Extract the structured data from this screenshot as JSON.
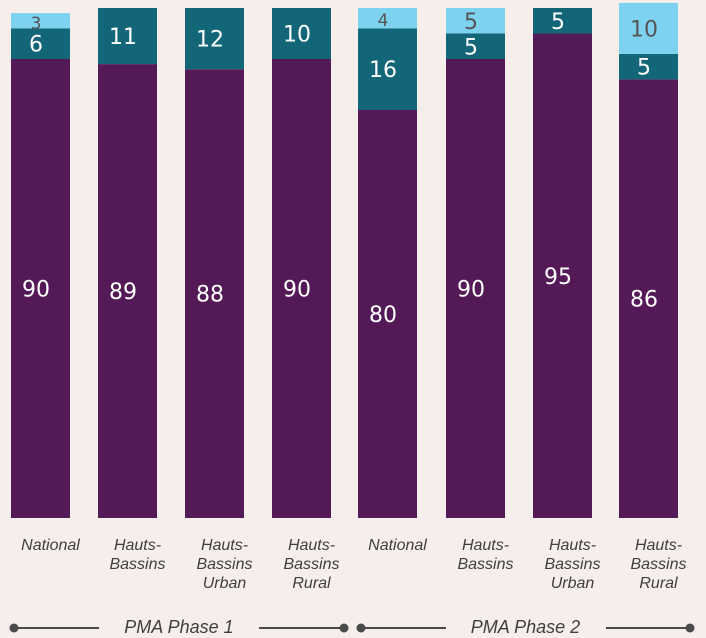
{
  "chart_data": {
    "type": "bar",
    "stacked": true,
    "orientation": "vertical",
    "groups": [
      {
        "label": "PMA Phase 1"
      },
      {
        "label": "PMA Phase 2"
      }
    ],
    "categories": [
      {
        "lines": [
          "National"
        ],
        "group": 0
      },
      {
        "lines": [
          "Hauts-",
          "Bassins"
        ],
        "group": 0
      },
      {
        "lines": [
          "Hauts-",
          "Bassins",
          "Urban"
        ],
        "group": 0
      },
      {
        "lines": [
          "Hauts-",
          "Bassins",
          "Rural"
        ],
        "group": 0
      },
      {
        "lines": [
          "National"
        ],
        "group": 1
      },
      {
        "lines": [
          "Hauts-",
          "Bassins"
        ],
        "group": 1
      },
      {
        "lines": [
          "Hauts-",
          "Bassins",
          "Urban"
        ],
        "group": 1
      },
      {
        "lines": [
          "Hauts-",
          "Bassins",
          "Rural"
        ],
        "group": 1
      }
    ],
    "series": [
      {
        "color": "#541a57",
        "label_color": "#ffffff",
        "values": [
          90,
          89,
          88,
          90,
          80,
          90,
          95,
          86
        ]
      },
      {
        "color": "#136678",
        "label_color": "#ffffff",
        "values": [
          6,
          11,
          12,
          10,
          16,
          5,
          5,
          5
        ]
      },
      {
        "color": "#7dd3ef",
        "label_color": "#555555",
        "values": [
          3,
          null,
          null,
          null,
          4,
          5,
          null,
          10
        ]
      }
    ],
    "data_labels": true,
    "legend": false,
    "grid": false,
    "ylim": [
      0,
      100
    ]
  }
}
